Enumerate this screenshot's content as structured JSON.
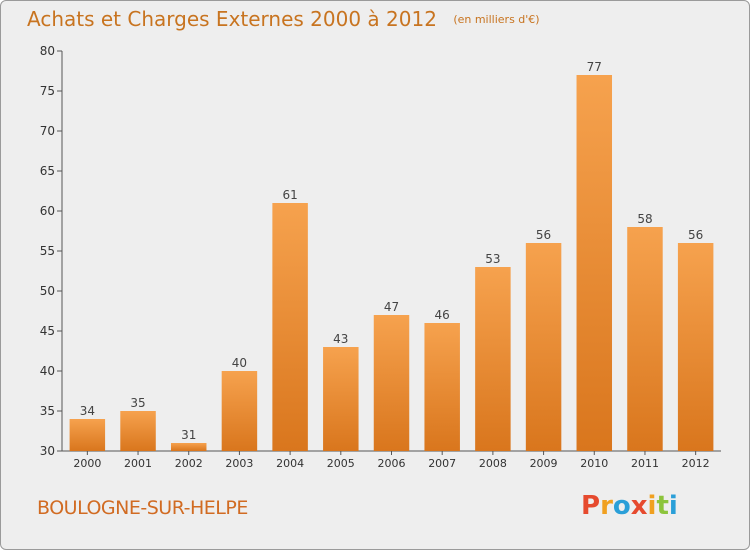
{
  "header": {
    "title": "Achats et Charges Externes 2000 à 2012",
    "subtitle": "(en milliers d'€)"
  },
  "footer": {
    "commune": "BOULOGNE-SUR-HELPE",
    "logo_text": "Proxiti"
  },
  "colors": {
    "bar_light": "#f6a24e",
    "bar_dark": "#d9761d",
    "title": "#c87420",
    "commune": "#d16b22",
    "logo_letters": [
      "#e64a2e",
      "#f0a020",
      "#2a9fd8",
      "#e64a2e",
      "#f0a020",
      "#8cc43c",
      "#2a9fd8"
    ]
  },
  "chart_data": {
    "type": "bar",
    "title": "Achats et Charges Externes 2000 à 2012",
    "subtitle": "(en milliers d'€)",
    "xlabel": "",
    "ylabel": "",
    "categories": [
      "2000",
      "2001",
      "2002",
      "2003",
      "2004",
      "2005",
      "2006",
      "2007",
      "2008",
      "2009",
      "2010",
      "2011",
      "2012"
    ],
    "values": [
      34,
      35,
      31,
      40,
      61,
      43,
      47,
      46,
      53,
      56,
      77,
      58,
      56
    ],
    "ylim": [
      30,
      80
    ],
    "yticks": [
      30,
      35,
      40,
      45,
      50,
      55,
      60,
      65,
      70,
      75,
      80
    ],
    "grid": false,
    "legend": "none"
  }
}
